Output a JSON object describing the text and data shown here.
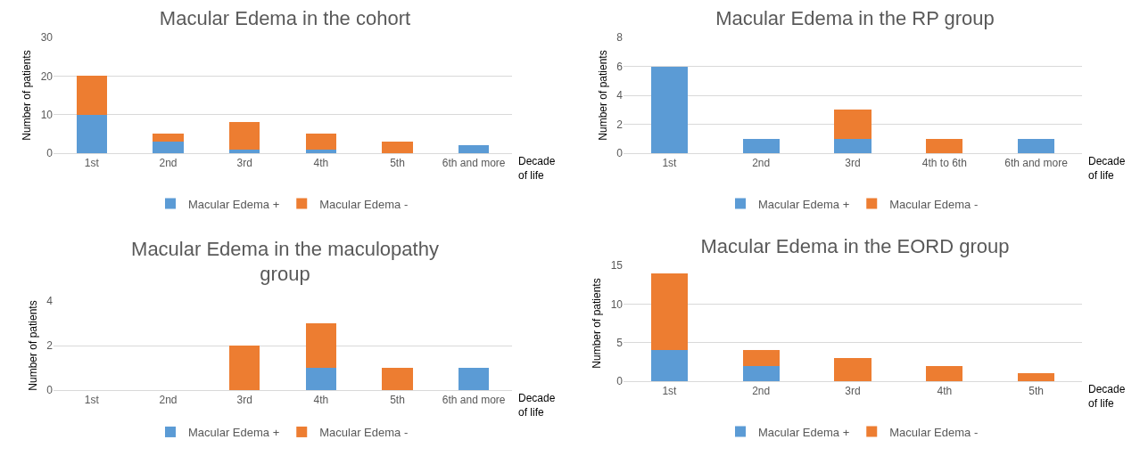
{
  "chart_data": [
    {
      "type": "bar",
      "title": "Macular Edema in the cohort",
      "xlabel": "Decade of life",
      "ylabel": "Number of patients",
      "categories": [
        "1st",
        "2nd",
        "3rd",
        "4th",
        "5th",
        "6th and more"
      ],
      "stacked": true,
      "ylim": [
        0,
        30
      ],
      "yticks": [
        0,
        10,
        20,
        30
      ],
      "grid": "y",
      "legend": "bottom",
      "series": [
        {
          "name": "Macular Edema +",
          "color": "#5b9bd5",
          "values": [
            10,
            3,
            1,
            1,
            0,
            2
          ]
        },
        {
          "name": "Macular Edema -",
          "color": "#ed7d31",
          "values": [
            10,
            2,
            7,
            4,
            3,
            0
          ]
        }
      ]
    },
    {
      "type": "bar",
      "title": "Macular Edema in the RP group",
      "xlabel": "Decade of life",
      "ylabel": "Number of patients",
      "categories": [
        "1st",
        "2nd",
        "3rd",
        "4th to 6th",
        "6th and more"
      ],
      "stacked": true,
      "ylim": [
        0,
        8
      ],
      "yticks": [
        0,
        2,
        4,
        6,
        8
      ],
      "grid": "y",
      "legend": "bottom",
      "series": [
        {
          "name": "Macular Edema +",
          "color": "#5b9bd5",
          "values": [
            6,
            1,
            1,
            0,
            1
          ]
        },
        {
          "name": "Macular Edema -",
          "color": "#ed7d31",
          "values": [
            0,
            0,
            2,
            1,
            0
          ]
        }
      ]
    },
    {
      "type": "bar",
      "title": "Macular Edema in the maculopathy group",
      "xlabel": "Decade of life",
      "ylabel": "Number of patients",
      "categories": [
        "1st",
        "2nd",
        "3rd",
        "4th",
        "5th",
        "6th and more"
      ],
      "stacked": true,
      "ylim": [
        0,
        4
      ],
      "yticks": [
        0,
        2,
        4
      ],
      "grid": "y",
      "legend": "bottom",
      "series": [
        {
          "name": "Macular Edema +",
          "color": "#5b9bd5",
          "values": [
            0,
            0,
            0,
            1,
            0,
            1
          ]
        },
        {
          "name": "Macular Edema -",
          "color": "#ed7d31",
          "values": [
            0,
            0,
            2,
            2,
            1,
            0
          ]
        }
      ]
    },
    {
      "type": "bar",
      "title": "Macular Edema in the EORD group",
      "xlabel": "Decade of life",
      "ylabel": "Number of patients",
      "categories": [
        "1st",
        "2nd",
        "3rd",
        "4th",
        "5th"
      ],
      "stacked": true,
      "ylim": [
        0,
        15
      ],
      "yticks": [
        0,
        5,
        10,
        15
      ],
      "grid": "y",
      "legend": "bottom",
      "series": [
        {
          "name": "Macular Edema +",
          "color": "#5b9bd5",
          "values": [
            4,
            2,
            0,
            0,
            0
          ]
        },
        {
          "name": "Macular Edema -",
          "color": "#ed7d31",
          "values": [
            10,
            2,
            3,
            2,
            1
          ]
        }
      ]
    }
  ]
}
